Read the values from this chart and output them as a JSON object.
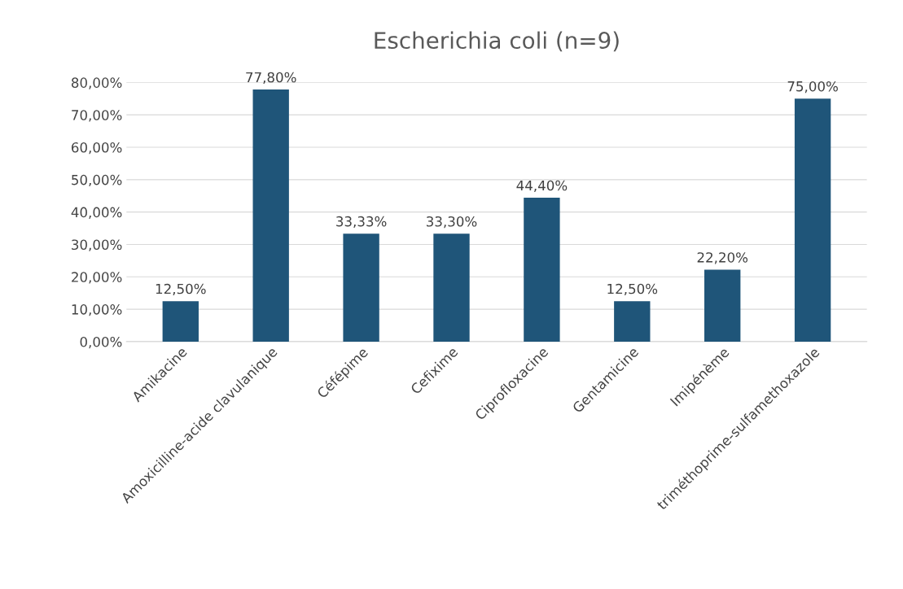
{
  "chart_data": {
    "type": "bar",
    "title": "Escherichia coli (n=9)",
    "categories": [
      "Amikacine",
      "Amoxicilline-acide clavulanique",
      "Céfépime",
      "Cefixime",
      "Ciprofloxacine",
      "Gentamicine",
      "Imipénème",
      "triméthoprime-sulfamethoxazole"
    ],
    "values": [
      12.5,
      77.8,
      33.33,
      33.3,
      44.4,
      12.5,
      22.2,
      75.0
    ],
    "value_labels": [
      "12,50%",
      "77,80%",
      "33,33%",
      "33,30%",
      "44,40%",
      "12,50%",
      "22,20%",
      "75,00%"
    ],
    "color": "#1f5579",
    "ylim": [
      0,
      80
    ],
    "yticks": [
      {
        "value": 0,
        "label": "0,00%"
      },
      {
        "value": 10,
        "label": "10,00%"
      },
      {
        "value": 20,
        "label": "20,00%"
      },
      {
        "value": 30,
        "label": "30,00%"
      },
      {
        "value": 40,
        "label": "40,00%"
      },
      {
        "value": 50,
        "label": "50,00%"
      },
      {
        "value": 60,
        "label": "60,00%"
      },
      {
        "value": 70,
        "label": "70,00%"
      },
      {
        "value": 80,
        "label": "80,00%"
      }
    ],
    "grid": "y"
  }
}
